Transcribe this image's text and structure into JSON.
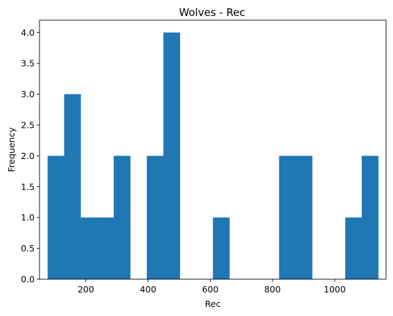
{
  "chart_data": {
    "type": "bar",
    "title": "Wolves - Rec",
    "xlabel": "Rec",
    "ylabel": "Frequency",
    "xlim": [
      51,
      1165
    ],
    "ylim": [
      0,
      4.2
    ],
    "x_ticks": [
      200,
      400,
      600,
      800,
      1000
    ],
    "x_tick_labels": [
      "200",
      "400",
      "600",
      "800",
      "1000"
    ],
    "y_ticks": [
      0,
      0.5,
      1,
      1.5,
      2,
      2.5,
      3,
      3.5,
      4
    ],
    "y_tick_labels": [
      "0.0",
      "0.5",
      "1.0",
      "1.5",
      "2.0",
      "2.5",
      "3.0",
      "3.5",
      "4.0"
    ],
    "bin_start": 77,
    "bin_width": 53.15,
    "values": [
      2,
      3,
      1,
      1,
      2,
      0,
      2,
      4,
      0,
      0,
      1,
      0,
      0,
      0,
      2,
      2,
      0,
      0,
      1,
      2
    ],
    "bar_color": "#1f77b4",
    "grid": false
  }
}
